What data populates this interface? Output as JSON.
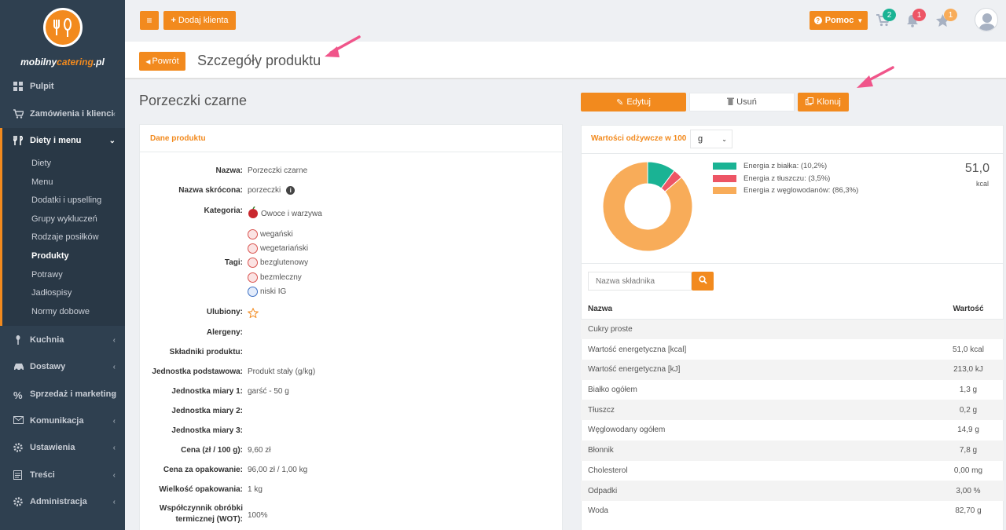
{
  "brand": {
    "name_a": "mobilny",
    "name_b": "catering",
    "name_c": ".pl"
  },
  "sidebar": {
    "items": [
      {
        "label": "Pulpit",
        "icon": "dashboard-icon"
      },
      {
        "label": "Zamówienia i klienci",
        "icon": "cart-icon"
      },
      {
        "label": "Diety i menu",
        "icon": "cutlery-icon"
      },
      {
        "label": "Kuchnia",
        "icon": "spoon-icon"
      },
      {
        "label": "Dostawy",
        "icon": "car-icon"
      },
      {
        "label": "Sprzedaż i marketing",
        "icon": "percent-icon"
      },
      {
        "label": "Komunikacja",
        "icon": "envelope-icon"
      },
      {
        "label": "Ustawienia",
        "icon": "gear-icon"
      },
      {
        "label": "Treści",
        "icon": "file-icon"
      },
      {
        "label": "Administracja",
        "icon": "cog-icon"
      }
    ],
    "sub_items": [
      "Diety",
      "Menu",
      "Dodatki i upselling",
      "Grupy wykluczeń",
      "Rodzaje posiłków",
      "Produkty",
      "Potrawy",
      "Jadłospisy",
      "Normy dobowe"
    ],
    "active_sub": "Produkty"
  },
  "topbar": {
    "add_client": "Dodaj klienta",
    "help": "Pomoc",
    "cart_count": "2",
    "bell_count": "1",
    "star_count": "1"
  },
  "header": {
    "back": "Powrót",
    "title": "Szczegóły produktu"
  },
  "product": {
    "name": "Porzeczki czarne"
  },
  "actions": {
    "edit": "Edytuj",
    "delete": "Usuń",
    "clone": "Klonuj"
  },
  "details": {
    "title": "Dane produktu",
    "fields": [
      {
        "k": "Nazwa:",
        "v": "Porzeczki czarne"
      },
      {
        "k": "Nazwa skrócona:",
        "v": "porzeczki"
      },
      {
        "k": "Kategoria:",
        "v": "Owoce i warzywa"
      },
      {
        "k": "Tagi:",
        "v": ""
      },
      {
        "k": "Ulubiony:",
        "v": ""
      },
      {
        "k": "Alergeny:",
        "v": ""
      },
      {
        "k": "Składniki produktu:",
        "v": ""
      },
      {
        "k": "Jednostka podstawowa:",
        "v": "Produkt stały (g/kg)"
      },
      {
        "k": "Jednostka miary 1:",
        "v": "garść - 50 g"
      },
      {
        "k": "Jednostka miary 2:",
        "v": ""
      },
      {
        "k": "Jednostka miary 3:",
        "v": ""
      },
      {
        "k": "Cena (zł / 100 g):",
        "v": "9,60 zł"
      },
      {
        "k": "Cena za opakowanie:",
        "v": "96,00 zł / 1,00 kg"
      },
      {
        "k": "Wielkość opakowania:",
        "v": "1 kg"
      },
      {
        "k": "Współczynnik obróbki termicznej (WOT):",
        "v": "100%"
      }
    ],
    "tags": [
      "wegański",
      "wegetariański",
      "bezglutenowy",
      "bezmleczny",
      "niski IG"
    ]
  },
  "nutrition": {
    "title": "Wartości odżywcze w 100",
    "unit": "g",
    "kcal_value": "51,0",
    "kcal_unit": "kcal",
    "legend": [
      "Energia z białka: (10,2%)",
      "Energia z tłuszczu: (3,5%)",
      "Energia z węglowodanów: (86,3%)"
    ],
    "search_placeholder": "Nazwa składnika",
    "col_name": "Nazwa",
    "col_value": "Wartość",
    "rows": [
      {
        "n": "Cukry proste",
        "v": ""
      },
      {
        "n": "Wartość energetyczna [kcal]",
        "v": "51,0 kcal"
      },
      {
        "n": "Wartość energetyczna [kJ]",
        "v": "213,0 kJ"
      },
      {
        "n": "Białko ogółem",
        "v": "1,3 g"
      },
      {
        "n": "Tłuszcz",
        "v": "0,2 g"
      },
      {
        "n": "Węglowodany ogółem",
        "v": "14,9 g"
      },
      {
        "n": "Błonnik",
        "v": "7,8 g"
      },
      {
        "n": "Cholesterol",
        "v": "0,00 mg"
      },
      {
        "n": "Odpadki",
        "v": "3,00 %"
      },
      {
        "n": "Woda",
        "v": "82,70 g"
      }
    ]
  },
  "chart_data": {
    "type": "pie",
    "categories": [
      "Energia z białka",
      "Energia z tłuszczu",
      "Energia z węglowodanów"
    ],
    "values": [
      10.2,
      3.5,
      86.3
    ],
    "colors": [
      "#1ab394",
      "#ed5565",
      "#f8ac59"
    ]
  }
}
